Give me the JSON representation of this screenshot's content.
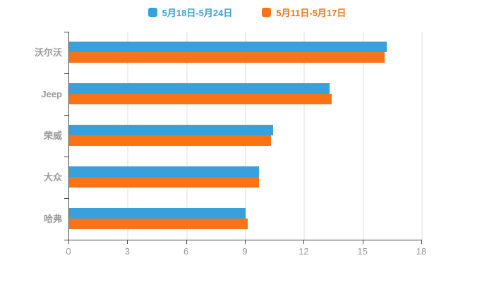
{
  "legend": {
    "items": [
      {
        "label": "5月18日-5月24日",
        "color": "#38A1DB"
      },
      {
        "label": "5月11日-5月17日",
        "color": "#FB7315"
      }
    ]
  },
  "colors": {
    "axis": "#444444",
    "gridline": "#dddddd",
    "label": "#999999",
    "background": "#ffffff"
  },
  "chart_data": {
    "type": "bar",
    "orientation": "horizontal",
    "title": "",
    "xlabel": "",
    "ylabel": "",
    "categories": [
      "沃尔沃",
      "Jeep",
      "荣威",
      "大众",
      "哈弗"
    ],
    "series": [
      {
        "name": "5月18日-5月24日",
        "color": "#38A1DB",
        "values": [
          16.2,
          13.3,
          10.4,
          9.7,
          9.0
        ]
      },
      {
        "name": "5月11日-5月17日",
        "color": "#FB7315",
        "values": [
          16.1,
          13.4,
          10.3,
          9.7,
          9.1
        ]
      }
    ],
    "xlim": [
      0,
      18
    ],
    "xticks": [
      0,
      3,
      6,
      9,
      12,
      15,
      18
    ],
    "grid": true,
    "legend_position": "top"
  }
}
